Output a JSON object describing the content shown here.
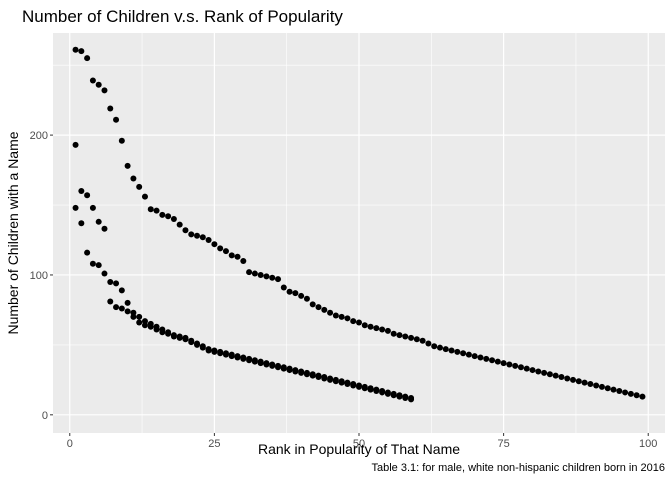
{
  "chart_data": {
    "type": "scatter",
    "title": "Number of Children v.s. Rank of Popularity",
    "xlabel": "Rank in Popularity of That Name",
    "ylabel": "Number of Children with a Name",
    "caption": "Table 3.1: for male, white non-hispanic children born in 2016",
    "xlim": [
      -2.9,
      102.9
    ],
    "ylim": [
      -13,
      273
    ],
    "x_ticks": [
      0,
      25,
      50,
      75,
      100
    ],
    "y_ticks": [
      0,
      100,
      200
    ],
    "grid": true,
    "legend": "none",
    "colors": {
      "panel_background": "#ebebeb",
      "grid_major": "#ffffff",
      "points": "#000000"
    },
    "series": [
      {
        "x": [
          1,
          2,
          3,
          4,
          5,
          6,
          7,
          8,
          9,
          10,
          11,
          12,
          13,
          14,
          15,
          16,
          17,
          18,
          19,
          20,
          21,
          22,
          23,
          24,
          25,
          26,
          27,
          28,
          29,
          30,
          31,
          32,
          33,
          34,
          35,
          36,
          37,
          38,
          39,
          40,
          41,
          42,
          43,
          44,
          45,
          46,
          47,
          48,
          49,
          50,
          51,
          52,
          53,
          54,
          55,
          56,
          57,
          58,
          59,
          60,
          61,
          62,
          63,
          64,
          65,
          66,
          67,
          68,
          69,
          70,
          71,
          72,
          73,
          74,
          75,
          76,
          77,
          78,
          79,
          80,
          81,
          82,
          83,
          84,
          85,
          86,
          87,
          88,
          89,
          90,
          91,
          92,
          93,
          94,
          95,
          96,
          97,
          98,
          99
        ],
        "y": [
          261,
          260,
          255,
          239,
          236,
          232,
          219,
          211,
          196,
          178,
          169,
          163,
          156,
          147,
          146,
          143,
          142,
          140,
          136,
          132,
          129,
          128,
          127,
          125,
          122,
          119,
          117,
          114,
          113,
          110,
          102,
          101,
          100,
          99,
          98,
          97,
          91,
          88,
          87,
          85,
          83,
          79,
          77,
          75,
          73,
          71,
          70,
          69,
          67,
          66,
          64,
          63,
          62,
          61,
          60,
          58,
          57,
          56,
          55,
          54,
          53,
          51,
          49,
          48,
          47,
          46,
          45,
          44,
          43,
          42,
          41,
          40,
          39,
          38,
          37,
          36,
          35,
          34,
          33,
          32,
          31,
          30,
          29,
          28,
          27,
          26,
          25,
          24,
          23,
          22,
          21,
          20,
          19,
          18,
          17,
          16,
          15,
          14,
          13
        ]
      },
      {
        "x": [
          1,
          2,
          3,
          4,
          5,
          6,
          7,
          8,
          9,
          10,
          11,
          12,
          13,
          14,
          15,
          16,
          17,
          18,
          19,
          20,
          21,
          22,
          23,
          24,
          25,
          26,
          27,
          28,
          29,
          30,
          31,
          32,
          33,
          34,
          35,
          36,
          37,
          38,
          39,
          40,
          41,
          42,
          43,
          44,
          45,
          46,
          47,
          48,
          49,
          50,
          51,
          52,
          53,
          54,
          55,
          56,
          57,
          58,
          59
        ],
        "y": [
          193,
          160,
          157,
          148,
          138,
          133,
          95,
          94,
          89,
          80,
          73,
          70,
          67,
          65,
          63,
          61,
          59,
          57,
          56,
          55,
          53,
          51,
          49,
          47,
          46,
          45,
          44,
          43,
          42,
          41,
          40,
          39,
          38,
          37,
          36,
          35,
          34,
          33,
          32,
          31,
          30,
          29,
          28,
          27,
          26,
          25,
          24,
          23,
          22,
          21,
          20,
          19,
          18,
          17,
          16,
          15,
          14,
          13,
          12
        ]
      },
      {
        "x": [
          1,
          2,
          3,
          4,
          5,
          6,
          7,
          8,
          9,
          10,
          11,
          12,
          13,
          14,
          15,
          16,
          17,
          18,
          19,
          20,
          21,
          22,
          23,
          24,
          25,
          26,
          27,
          28,
          29,
          30,
          31,
          32,
          33,
          34,
          35,
          36,
          37,
          38,
          39,
          40,
          41,
          42,
          43,
          44,
          45,
          46,
          47,
          48,
          49,
          50,
          51,
          52,
          53,
          54,
          55,
          56,
          57,
          58,
          59
        ],
        "y": [
          148,
          137,
          116,
          108,
          107,
          101,
          81,
          77,
          76,
          74,
          70,
          66,
          64,
          63,
          61,
          59,
          58,
          56,
          55,
          54,
          52,
          50,
          48,
          46,
          45,
          44,
          43,
          42,
          41,
          40,
          39,
          38,
          37,
          36,
          35,
          34,
          33,
          32,
          31,
          30,
          29,
          28,
          27,
          26,
          25,
          24,
          23,
          22,
          21,
          20,
          19,
          18,
          17,
          16,
          15,
          14,
          13,
          12,
          11
        ]
      }
    ]
  }
}
